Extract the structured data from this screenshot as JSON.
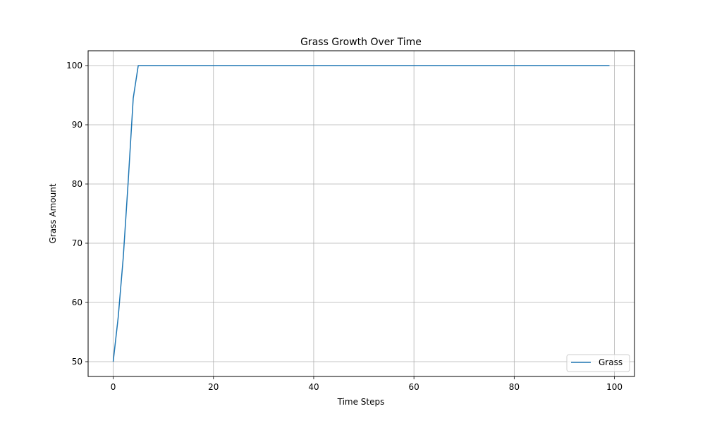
{
  "chart_data": {
    "type": "line",
    "title": "Grass Growth Over Time",
    "xlabel": "Time Steps",
    "ylabel": "Grass Amount",
    "xlim": [
      -5,
      104
    ],
    "ylim": [
      47.5,
      102.5
    ],
    "xticks": [
      0,
      20,
      40,
      60,
      80,
      100
    ],
    "yticks": [
      50,
      60,
      70,
      80,
      90,
      100
    ],
    "grid": true,
    "legend_position": "lower-right",
    "series": [
      {
        "name": "Grass",
        "color": "#1f77b4",
        "x": [
          0,
          1,
          2,
          3,
          4,
          5,
          99
        ],
        "y": [
          50,
          57.5,
          67.5,
          80.5,
          94.5,
          100,
          100
        ]
      }
    ]
  }
}
